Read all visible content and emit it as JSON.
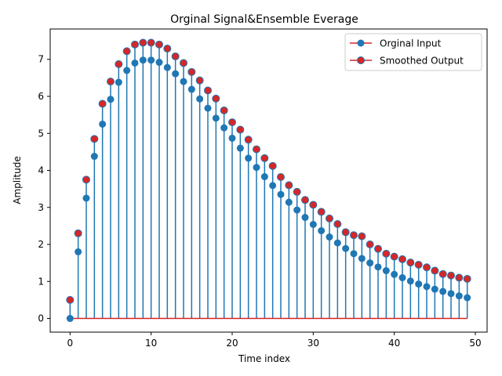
{
  "chart_data": {
    "type": "stem",
    "title": "Orginal Signal&Ensemble Everage",
    "xlabel": "Time index",
    "ylabel": "Amplitude",
    "xlim": [
      -2.45,
      51.45
    ],
    "ylim": [
      -0.37,
      7.82
    ],
    "xticks": [
      0,
      10,
      20,
      30,
      40,
      50
    ],
    "yticks": [
      0,
      1,
      2,
      3,
      4,
      5,
      6,
      7
    ],
    "grid": false,
    "legend_position": "top-right",
    "x": [
      0,
      1,
      2,
      3,
      4,
      5,
      6,
      7,
      8,
      9,
      10,
      11,
      12,
      13,
      14,
      15,
      16,
      17,
      18,
      19,
      20,
      21,
      22,
      23,
      24,
      25,
      26,
      27,
      28,
      29,
      30,
      31,
      32,
      33,
      34,
      35,
      36,
      37,
      38,
      39,
      40,
      41,
      42,
      43,
      44,
      45,
      46,
      47,
      48,
      49
    ],
    "series": [
      {
        "name": "Orginal Input",
        "marker_color": "#1f77b4",
        "stem_color": "#1f77b4",
        "values": [
          0.0,
          1.8,
          3.25,
          4.38,
          5.25,
          5.92,
          6.38,
          6.7,
          6.9,
          6.98,
          6.98,
          6.92,
          6.78,
          6.61,
          6.4,
          6.19,
          5.93,
          5.68,
          5.41,
          5.15,
          4.87,
          4.6,
          4.33,
          4.08,
          3.83,
          3.59,
          3.35,
          3.14,
          2.93,
          2.73,
          2.54,
          2.37,
          2.2,
          2.04,
          1.89,
          1.75,
          1.62,
          1.5,
          1.39,
          1.29,
          1.19,
          1.1,
          1.01,
          0.93,
          0.86,
          0.79,
          0.73,
          0.67,
          0.61,
          0.56
        ]
      },
      {
        "name": "Smoothed Output",
        "marker_color": "#d62728",
        "stem_color": "#1f77b4",
        "values": [
          0.5,
          2.3,
          3.75,
          4.85,
          5.8,
          6.4,
          6.87,
          7.22,
          7.4,
          7.45,
          7.45,
          7.4,
          7.29,
          7.08,
          6.9,
          6.66,
          6.43,
          6.16,
          5.94,
          5.62,
          5.3,
          5.1,
          4.83,
          4.57,
          4.33,
          4.12,
          3.82,
          3.6,
          3.42,
          3.2,
          3.07,
          2.88,
          2.7,
          2.55,
          2.33,
          2.25,
          2.22,
          2.0,
          1.88,
          1.75,
          1.67,
          1.6,
          1.51,
          1.45,
          1.38,
          1.29,
          1.2,
          1.16,
          1.1,
          1.07
        ]
      }
    ],
    "baseline": {
      "y": 0,
      "color": "#d62728"
    }
  }
}
